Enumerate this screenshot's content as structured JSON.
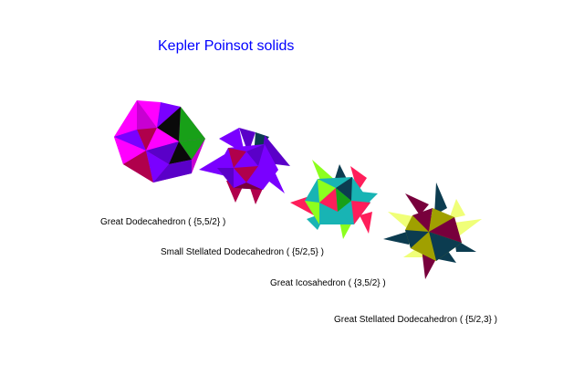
{
  "title": "Kepler Poinsot solids",
  "solids": [
    {
      "caption": "Great Dodecahedron ( {5,5/2} )"
    },
    {
      "caption": "Small Stellated Dodecahedron ( {5/2,5} )"
    },
    {
      "caption": "Great Icosahedron ( {3,5/2} )"
    },
    {
      "caption": "Great Stellated Dodecahedron ( {5/2,3} )"
    }
  ],
  "colors": {
    "title": "#0000ff",
    "magenta": "#ff00ff",
    "violet": "#7a00ff",
    "indigo": "#5a00c8",
    "crimson": "#b0004c",
    "green": "#18a018",
    "lime": "#8cff1e",
    "red": "#ff1e5a",
    "cyan": "#18b4b4",
    "teal": "#0c3c50",
    "olive": "#a0a000",
    "pale": "#f0ff78",
    "wine": "#78003c"
  }
}
